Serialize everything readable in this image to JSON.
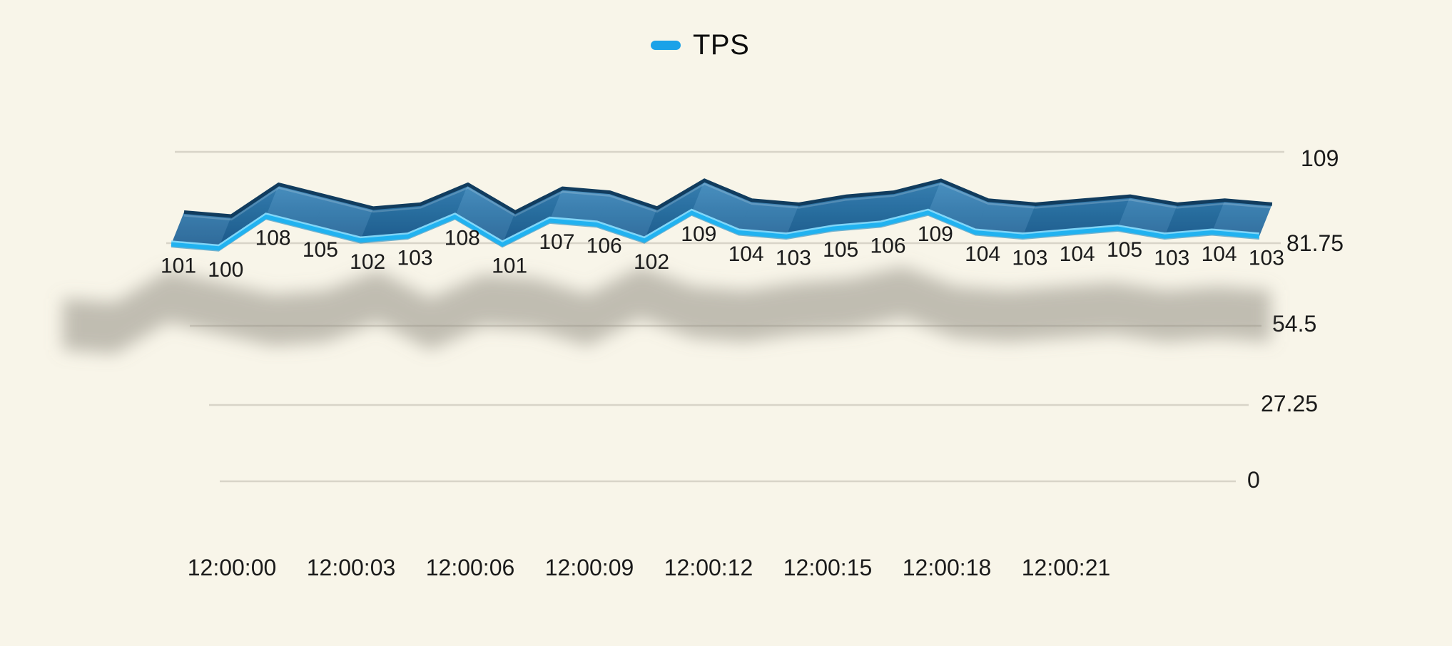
{
  "background_color": "#f8f5e9",
  "legend": {
    "label": "TPS",
    "marker_color": "#1ba2e8",
    "position": "top-center"
  },
  "chart_data": {
    "type": "line",
    "style": "3d-ribbon",
    "title": "",
    "series": [
      {
        "name": "TPS",
        "values": [
          101,
          100,
          108,
          105,
          102,
          103,
          108,
          101,
          107,
          106,
          102,
          109,
          104,
          103,
          105,
          106,
          109,
          104,
          103,
          104,
          105,
          103,
          104,
          103
        ]
      }
    ],
    "point_interval": "1 second",
    "x_tick_labels": [
      "12:00:00",
      "12:00:03",
      "12:00:06",
      "12:00:09",
      "12:00:12",
      "12:00:15",
      "12:00:18",
      "12:00:21"
    ],
    "y_axis": {
      "position": "right",
      "min": 0,
      "max": 109,
      "tick_labels": [
        "109",
        "81.75",
        "54.5",
        "27.25",
        "0"
      ]
    },
    "data_labels_visible": true,
    "grid": true,
    "legend_position": "top",
    "colors": {
      "ribbon_fill_top": "#3b87bb",
      "ribbon_fill_mid": "#2b74a8",
      "ribbon_fill_bottom": "#1d5d90",
      "ribbon_back_edge": "#113c5e",
      "ribbon_back_sheen": "#ffffff",
      "front_line": "#21b2f0",
      "front_line_glow": "#8adfff",
      "front_line_under": "#0a7cb8",
      "shadow": "#8a857a",
      "gridline": "#d8d4c8",
      "label_text": "#1a1a1a"
    }
  }
}
